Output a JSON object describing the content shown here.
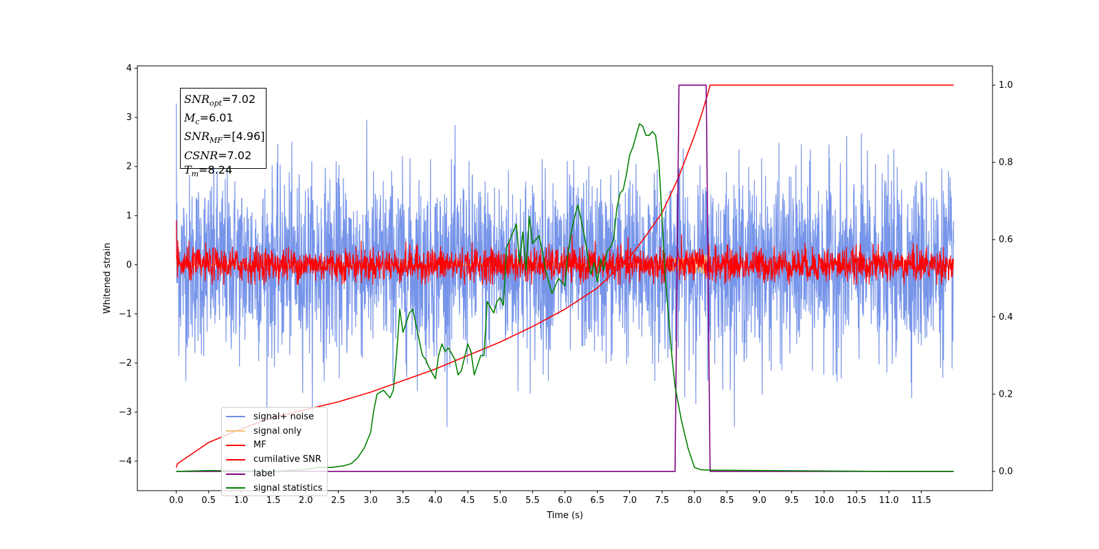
{
  "chart_data": {
    "type": "line",
    "title": "",
    "xlabel": "Time (s)",
    "ylabel": "Whitened strain",
    "ylabel_right": "",
    "xlim": [
      -0.6,
      12.6
    ],
    "ylim_left": [
      -4.6,
      4.05
    ],
    "ylim_right": [
      -0.05,
      1.05
    ],
    "x_ticks": [
      "0.0",
      "0.5",
      "1.0",
      "1.5",
      "2.0",
      "2.5",
      "3.0",
      "3.5",
      "4.0",
      "4.5",
      "5.0",
      "5.5",
      "6.0",
      "6.5",
      "7.0",
      "7.5",
      "8.0",
      "8.5",
      "9.0",
      "9.5",
      "10.0",
      "10.5",
      "11.0",
      "11.5"
    ],
    "y_ticks_left": [
      "4",
      "3",
      "2",
      "1",
      "0",
      "−1",
      "−2",
      "−3",
      "−4"
    ],
    "y_ticks_right": [
      "1.0",
      "0.8",
      "0.6",
      "0.4",
      "0.2",
      "0.0"
    ],
    "annotation": [
      {
        "base": "SNR",
        "sub": "opt",
        "value": "=7.02"
      },
      {
        "base": "M",
        "sub": "c",
        "value": "=6.01"
      },
      {
        "base": "SNR",
        "sub": "MF",
        "value": "=[4.96]"
      },
      {
        "base": "CSNR",
        "sub": "",
        "value": "=7.02"
      },
      {
        "base": "T",
        "sub": "m",
        "value": "=8.24"
      }
    ],
    "legend_position": "lower-left",
    "series": [
      {
        "name": "signal+ noise",
        "color": "#6f8ee8",
        "axis": "left",
        "style": "noise",
        "x_range": [
          0,
          12
        ],
        "approx_std": 0.9,
        "peak_range": [
          -3.3,
          3.65
        ]
      },
      {
        "name": "signal only",
        "color": "#f5c27a",
        "axis": "left",
        "style": "chirp",
        "x_range": [
          0,
          8.24
        ],
        "peak_amplitude": 0.4
      },
      {
        "name": "MF",
        "color": "#ff0000",
        "axis": "left",
        "style": "noise",
        "x_range": [
          0,
          12
        ],
        "approx_std": 0.17,
        "peak_range": [
          -0.4,
          1.0
        ]
      },
      {
        "name": "cumilative SNR",
        "color": "#ff0000",
        "axis": "right",
        "x": [
          0,
          0.02,
          0.5,
          1.0,
          1.5,
          2.0,
          2.5,
          3.0,
          3.5,
          4.0,
          4.5,
          5.0,
          5.5,
          6.0,
          6.5,
          7.0,
          7.25,
          7.5,
          7.75,
          8.0,
          8.1,
          8.2,
          8.24,
          12.0
        ],
        "values": [
          0.01,
          0.02,
          0.075,
          0.11,
          0.14,
          0.16,
          0.18,
          0.205,
          0.235,
          0.265,
          0.3,
          0.335,
          0.375,
          0.42,
          0.475,
          0.555,
          0.61,
          0.67,
          0.76,
          0.87,
          0.92,
          0.975,
          1.0,
          1.0
        ]
      },
      {
        "name": "label",
        "color": "#800080",
        "axis": "right",
        "x": [
          0,
          7.7,
          7.76,
          8.18,
          8.24,
          12.0
        ],
        "values": [
          0,
          0,
          1,
          1,
          0,
          0
        ]
      },
      {
        "name": "signal statistics",
        "color": "#008000",
        "axis": "right",
        "x": [
          0,
          0.5,
          1.0,
          1.5,
          2.0,
          2.2,
          2.4,
          2.6,
          2.7,
          2.8,
          2.9,
          3.0,
          3.05,
          3.1,
          3.2,
          3.3,
          3.35,
          3.4,
          3.45,
          3.5,
          3.6,
          3.65,
          3.7,
          3.8,
          3.85,
          3.9,
          4.0,
          4.05,
          4.1,
          4.15,
          4.2,
          4.3,
          4.35,
          4.4,
          4.5,
          4.55,
          4.6,
          4.7,
          4.75,
          4.8,
          4.9,
          4.95,
          5.0,
          5.05,
          5.1,
          5.2,
          5.25,
          5.3,
          5.35,
          5.4,
          5.45,
          5.5,
          5.6,
          5.65,
          5.7,
          5.8,
          5.9,
          6.0,
          6.05,
          6.1,
          6.15,
          6.2,
          6.3,
          6.35,
          6.4,
          6.45,
          6.5,
          6.55,
          6.6,
          6.65,
          6.7,
          6.75,
          6.8,
          6.85,
          6.9,
          6.95,
          7.0,
          7.05,
          7.1,
          7.15,
          7.2,
          7.25,
          7.3,
          7.35,
          7.4,
          7.45,
          7.5,
          7.55,
          7.6,
          7.65,
          7.7,
          7.8,
          7.9,
          8.0,
          8.1,
          8.3,
          9.0,
          10.0,
          11.0,
          12.0
        ],
        "values": [
          0,
          0.002,
          0.001,
          0.0,
          0.005,
          0.01,
          0.01,
          0.015,
          0.02,
          0.035,
          0.06,
          0.1,
          0.16,
          0.2,
          0.21,
          0.19,
          0.21,
          0.3,
          0.42,
          0.36,
          0.41,
          0.42,
          0.38,
          0.3,
          0.29,
          0.27,
          0.24,
          0.3,
          0.33,
          0.31,
          0.32,
          0.29,
          0.25,
          0.26,
          0.33,
          0.31,
          0.25,
          0.3,
          0.3,
          0.44,
          0.41,
          0.44,
          0.45,
          0.43,
          0.58,
          0.62,
          0.64,
          0.54,
          0.62,
          0.52,
          0.66,
          0.59,
          0.61,
          0.57,
          0.52,
          0.46,
          0.5,
          0.48,
          0.57,
          0.62,
          0.66,
          0.69,
          0.61,
          0.56,
          0.51,
          0.54,
          0.49,
          0.55,
          0.52,
          0.57,
          0.58,
          0.6,
          0.68,
          0.72,
          0.73,
          0.77,
          0.82,
          0.84,
          0.87,
          0.9,
          0.894,
          0.87,
          0.87,
          0.88,
          0.87,
          0.8,
          0.65,
          0.5,
          0.4,
          0.3,
          0.22,
          0.13,
          0.06,
          0.01,
          0.004,
          0.003,
          0.002,
          0.001,
          0.0,
          0.0
        ]
      }
    ]
  }
}
